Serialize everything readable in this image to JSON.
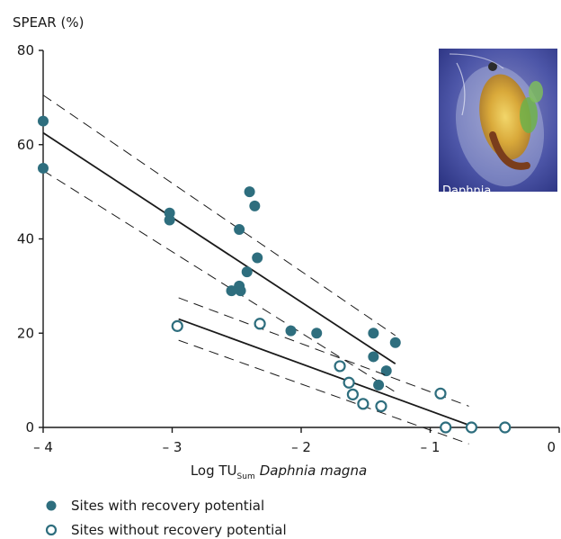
{
  "chart_data": {
    "type": "scatter",
    "ylabel": "SPEAR (%)",
    "xlabel_parts": {
      "main": "Log TU",
      "subscript": "Sum",
      "species": "Daphnia magna"
    },
    "xlim": [
      -4,
      0
    ],
    "ylim": [
      0,
      80
    ],
    "x_ticks": [
      -4,
      -3,
      -2,
      -1,
      0
    ],
    "x_tick_labels": [
      "– 4",
      "– 3",
      "– 2",
      "– 1",
      "0"
    ],
    "y_ticks": [
      0,
      20,
      40,
      60,
      80
    ],
    "y_tick_labels": [
      "0",
      "20",
      "40",
      "60",
      "80"
    ],
    "grid": false,
    "legend_position": "bottom-left",
    "series": [
      {
        "name": "Sites with recovery potential",
        "marker": "filled-circle",
        "color": "#2e6e7e",
        "points": [
          [
            -4.0,
            65
          ],
          [
            -4.0,
            55
          ],
          [
            -3.02,
            45.5
          ],
          [
            -3.02,
            44
          ],
          [
            -2.48,
            42
          ],
          [
            -2.4,
            50
          ],
          [
            -2.36,
            47
          ],
          [
            -2.34,
            36
          ],
          [
            -2.42,
            33
          ],
          [
            -2.48,
            30
          ],
          [
            -2.47,
            29
          ],
          [
            -2.54,
            29
          ],
          [
            -2.08,
            20.5
          ],
          [
            -1.88,
            20
          ],
          [
            -1.44,
            20
          ],
          [
            -1.44,
            15
          ],
          [
            -1.34,
            12
          ],
          [
            -1.4,
            9
          ],
          [
            -1.27,
            18
          ]
        ],
        "fit_line": [
          [
            -4.0,
            62.5
          ],
          [
            -1.27,
            13.5
          ]
        ],
        "ci_upper": [
          [
            -4.0,
            70.5
          ],
          [
            -1.27,
            19.5
          ]
        ],
        "ci_lower": [
          [
            -4.0,
            54.5
          ],
          [
            -1.27,
            7.5
          ]
        ]
      },
      {
        "name": "Sites without recovery potential",
        "marker": "open-circle",
        "color": "#2e6e7e",
        "points": [
          [
            -2.96,
            21.5
          ],
          [
            -2.32,
            22
          ],
          [
            -1.7,
            13
          ],
          [
            -1.63,
            9.5
          ],
          [
            -1.6,
            7
          ],
          [
            -1.52,
            5
          ],
          [
            -1.38,
            4.5
          ],
          [
            -0.92,
            7.2
          ],
          [
            -0.88,
            0
          ],
          [
            -0.68,
            0
          ],
          [
            -0.42,
            0
          ]
        ],
        "fit_line": [
          [
            -2.95,
            23
          ],
          [
            -0.7,
            0.5
          ]
        ],
        "ci_upper": [
          [
            -2.95,
            27.5
          ],
          [
            -0.7,
            4.5
          ]
        ],
        "ci_lower": [
          [
            -2.95,
            18.5
          ],
          [
            -0.7,
            -3.5
          ]
        ]
      }
    ]
  },
  "inset_image": {
    "caption": "Daphnia",
    "icon": "daphnia-photo"
  }
}
